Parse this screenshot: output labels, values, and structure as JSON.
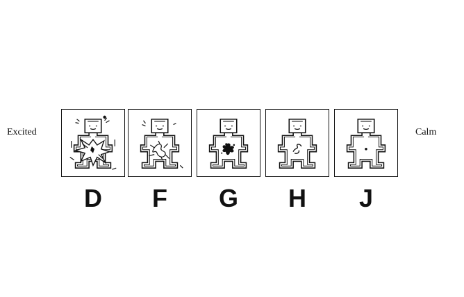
{
  "scale": {
    "left_label": "Excited",
    "right_label": "Calm"
  },
  "panels": [
    {
      "letter": "D",
      "figure": "figure-icon",
      "symbol": "explosion-burst-icon",
      "arousal_level": 5
    },
    {
      "letter": "F",
      "figure": "figure-icon",
      "symbol": "scribble-burst-icon",
      "arousal_level": 4
    },
    {
      "letter": "G",
      "figure": "figure-icon",
      "symbol": "splat-icon",
      "arousal_level": 3
    },
    {
      "letter": "H",
      "figure": "figure-icon",
      "symbol": "small-squiggle-icon",
      "arousal_level": 2
    },
    {
      "letter": "J",
      "figure": "figure-icon",
      "symbol": "dot-icon",
      "arousal_level": 1
    }
  ]
}
